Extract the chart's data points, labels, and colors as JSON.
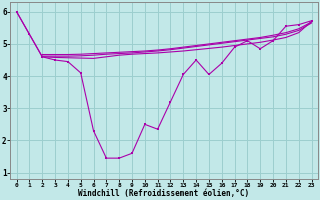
{
  "xlabel": "Windchill (Refroidissement éolien,°C)",
  "bg_color": "#c2e8e8",
  "grid_color": "#9ccece",
  "line_color": "#aa00aa",
  "xlim": [
    -0.5,
    23.5
  ],
  "ylim": [
    0.8,
    6.3
  ],
  "xticks": [
    0,
    1,
    2,
    3,
    4,
    5,
    6,
    7,
    8,
    9,
    10,
    11,
    12,
    13,
    14,
    15,
    16,
    17,
    18,
    19,
    20,
    21,
    22,
    23
  ],
  "yticks": [
    1,
    2,
    3,
    4,
    5,
    6
  ],
  "line1_x": [
    0,
    1,
    2,
    3,
    4,
    5,
    6,
    7,
    8,
    9,
    10,
    11,
    12,
    13,
    14,
    15,
    16,
    17,
    18,
    19,
    20,
    21,
    22,
    23
  ],
  "line1_y": [
    6.0,
    5.3,
    4.6,
    4.5,
    4.45,
    4.1,
    2.3,
    1.45,
    1.45,
    1.6,
    2.5,
    2.35,
    3.2,
    4.05,
    4.5,
    4.05,
    4.4,
    4.9,
    5.1,
    4.85,
    5.1,
    5.55,
    5.6,
    5.72
  ],
  "line2_x": [
    0,
    2,
    3,
    4,
    5,
    6,
    7,
    8,
    9,
    10,
    11,
    12,
    13,
    14,
    15,
    16,
    17,
    18,
    19,
    20,
    21,
    22,
    23
  ],
  "line2_y": [
    6.0,
    4.6,
    4.58,
    4.57,
    4.56,
    4.55,
    4.6,
    4.65,
    4.68,
    4.7,
    4.72,
    4.75,
    4.78,
    4.82,
    4.86,
    4.9,
    4.95,
    5.0,
    5.05,
    5.12,
    5.2,
    5.35,
    5.7
  ],
  "line3_x": [
    2,
    3,
    4,
    5,
    6,
    7,
    8,
    9,
    10,
    11,
    12,
    13,
    14,
    15,
    16,
    17,
    18,
    19,
    20,
    21,
    22,
    23
  ],
  "line3_y": [
    4.62,
    4.62,
    4.62,
    4.63,
    4.65,
    4.68,
    4.7,
    4.72,
    4.75,
    4.78,
    4.82,
    4.87,
    4.92,
    4.97,
    5.02,
    5.07,
    5.12,
    5.17,
    5.22,
    5.3,
    5.42,
    5.65
  ],
  "line4_x": [
    2,
    3,
    4,
    5,
    6,
    7,
    8,
    9,
    10,
    11,
    12,
    13,
    14,
    15,
    16,
    17,
    18,
    19,
    20,
    21,
    22,
    23
  ],
  "line4_y": [
    4.67,
    4.67,
    4.67,
    4.68,
    4.7,
    4.72,
    4.74,
    4.76,
    4.78,
    4.81,
    4.85,
    4.9,
    4.95,
    5.0,
    5.05,
    5.1,
    5.15,
    5.2,
    5.27,
    5.35,
    5.47,
    5.68
  ]
}
